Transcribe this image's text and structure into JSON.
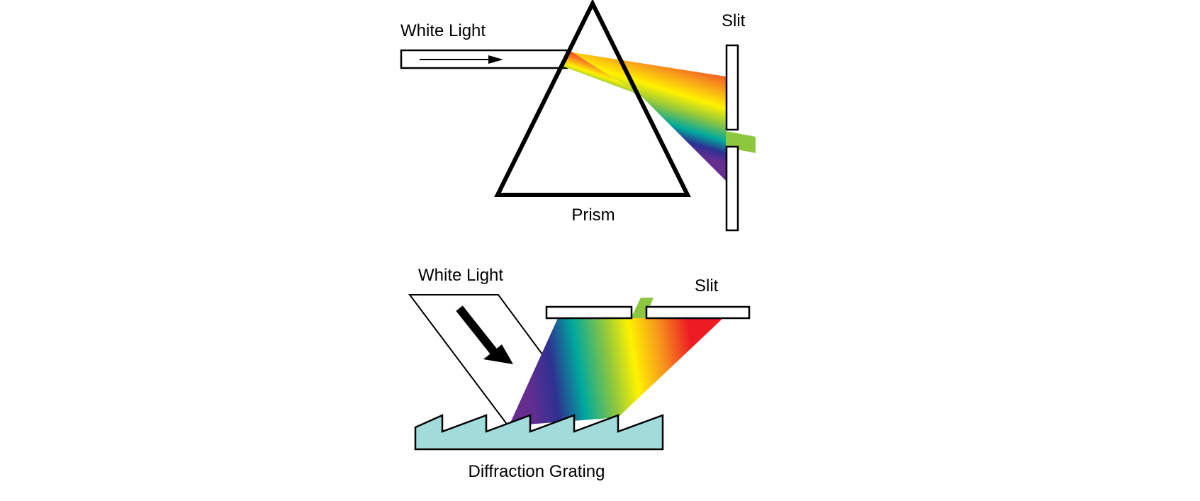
{
  "prism_diagram": {
    "light_label": "White Light",
    "slit_label": "Slit",
    "element_label": "Prism"
  },
  "grating_diagram": {
    "light_label": "White Light",
    "slit_label": "Slit",
    "element_label": "Diffraction Grating"
  },
  "colors": {
    "outline": "#000000",
    "grating_fill": "#a1dcda",
    "spectrum": [
      "#ed1c24",
      "#f7941d",
      "#fff200",
      "#8dc63f",
      "#00a99d",
      "#2e3192",
      "#662d91"
    ],
    "transmitted_band": "#8dc63f"
  }
}
